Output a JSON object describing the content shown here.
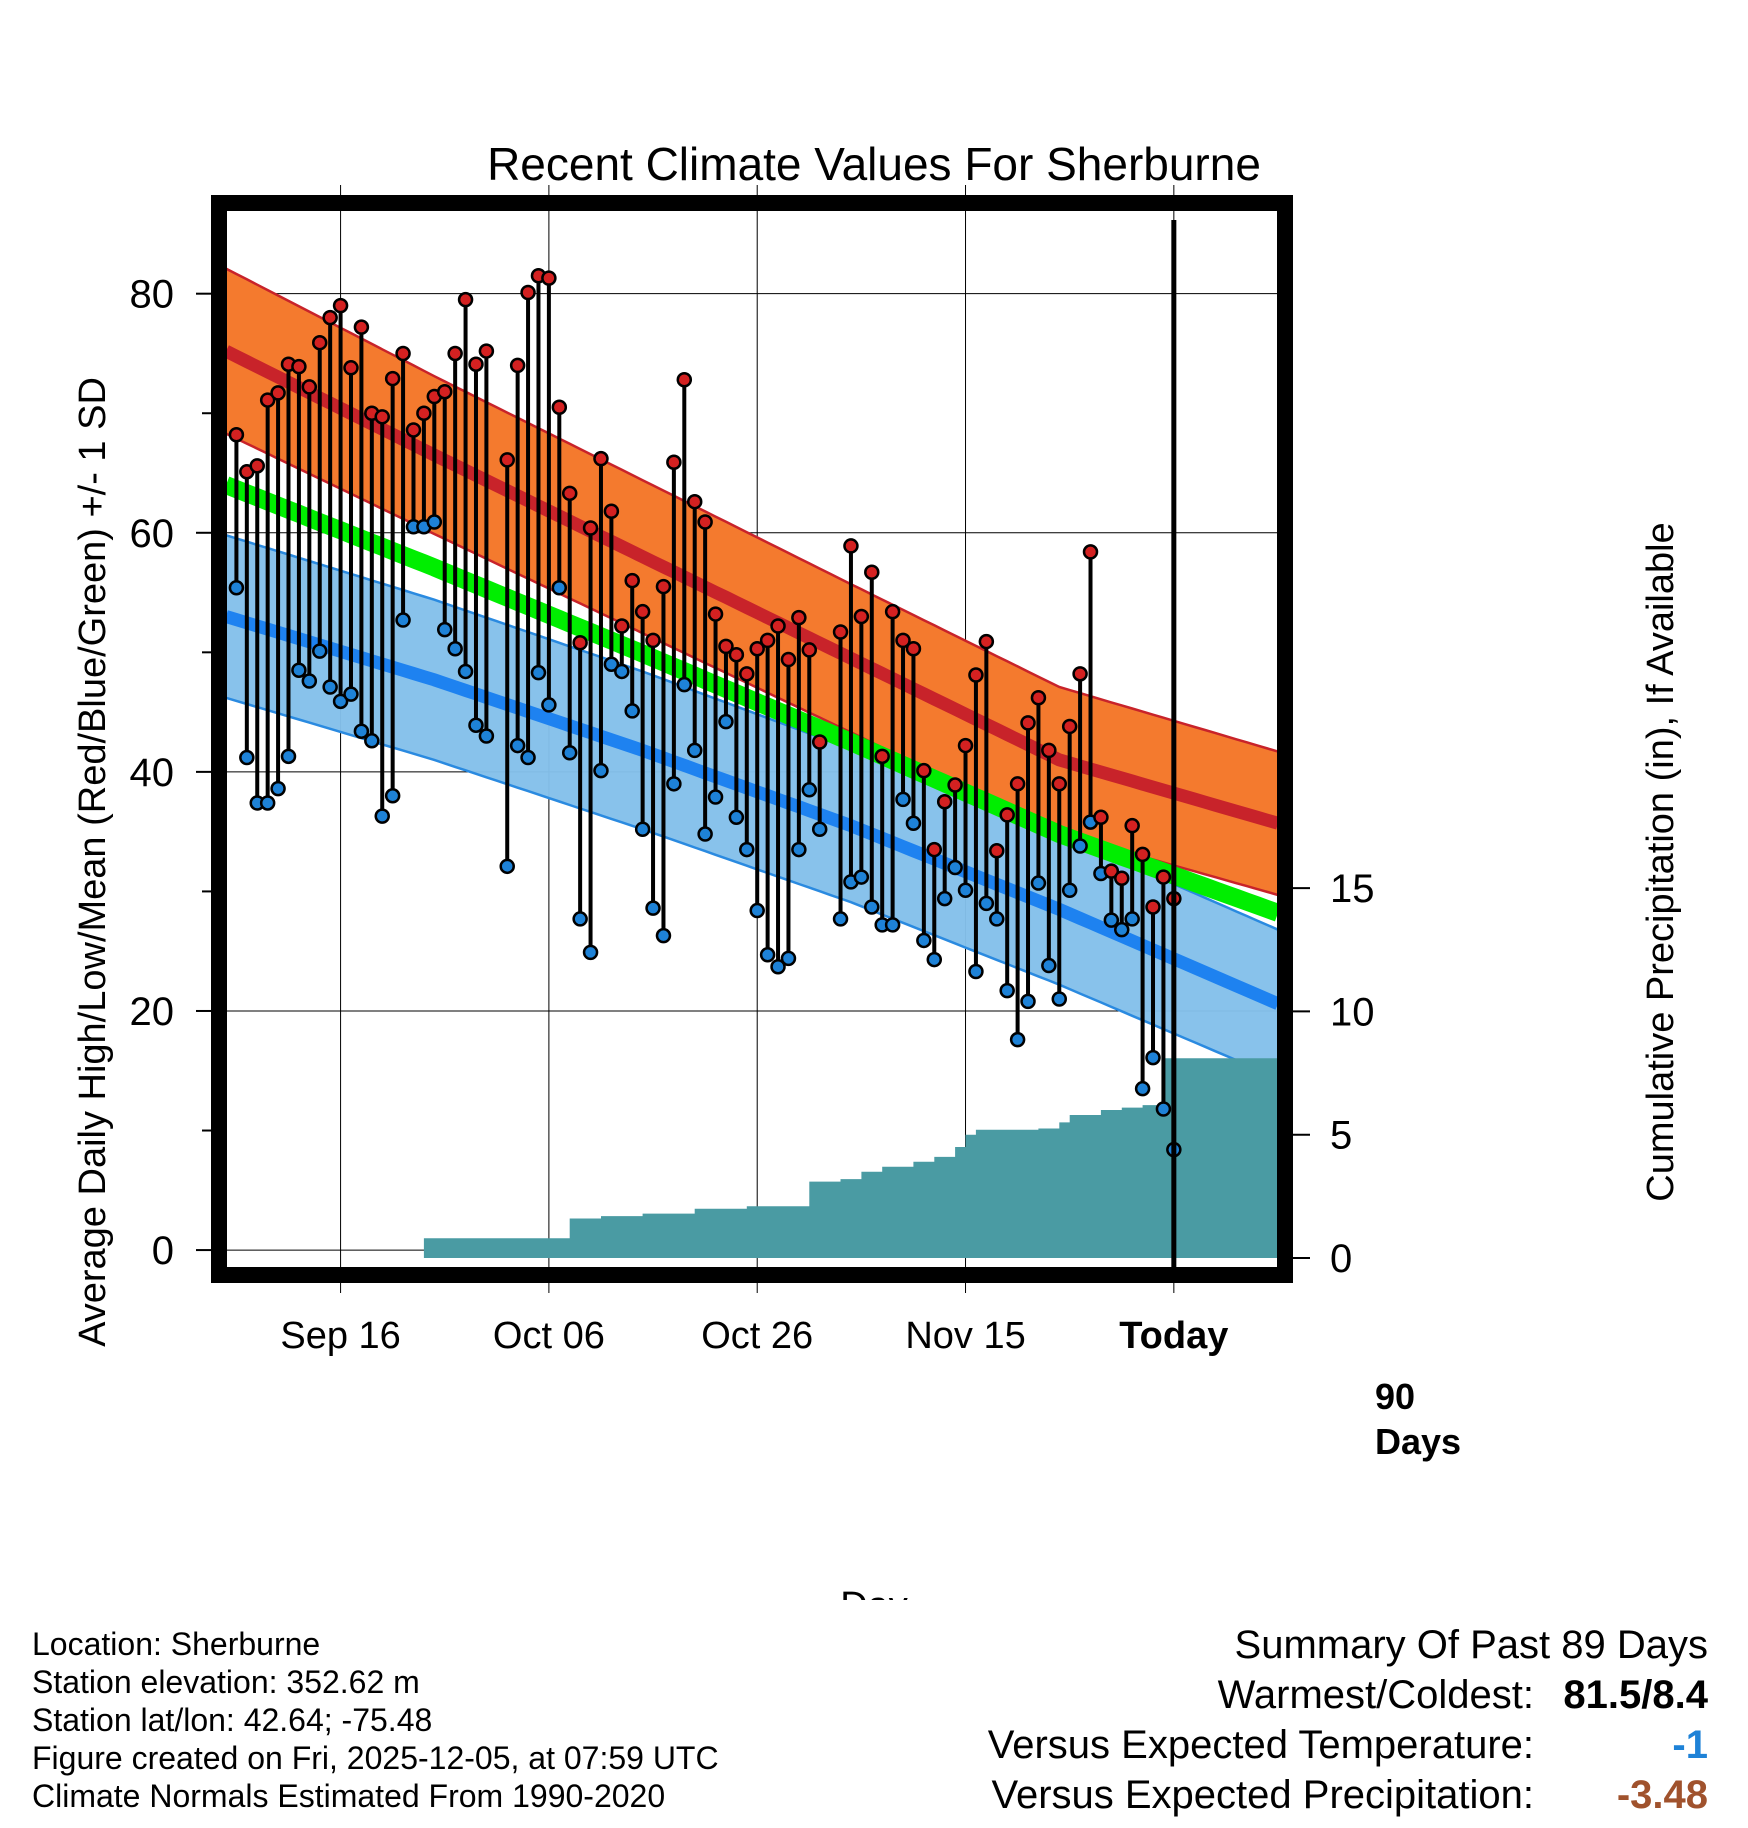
{
  "chart_data": {
    "type": "line",
    "title": "Recent Climate Values For Sherburne",
    "xlabel": "Day",
    "ylabel": "Average Daily High/Low/Mean (Red/Blue/Green) +/- 1 SD",
    "ylabel_right": "Cumulative Precipitation (in), If Available",
    "ylim": [
      -1.5,
      87
    ],
    "ylim_right": [
      0,
      42.5
    ],
    "xlim": [
      0,
      101
    ],
    "yticks": [
      "0",
      "20",
      "40",
      "60",
      "80"
    ],
    "yticks_right": [
      "0",
      "5",
      "10",
      "15"
    ],
    "xticks": [
      {
        "day": 11,
        "label": "Sep 16"
      },
      {
        "day": 31,
        "label": "Oct 06"
      },
      {
        "day": 51,
        "label": "Oct 26"
      },
      {
        "day": 71,
        "label": "Nov 15"
      },
      {
        "day": 91,
        "label": "Today"
      }
    ],
    "today_marker": {
      "day": 91,
      "label_line1": "90",
      "label_line2": "Days"
    },
    "normals": {
      "days": [
        0,
        20,
        40,
        60,
        80,
        101
      ],
      "high_mean": [
        75.2,
        66.5,
        58,
        49.5,
        41,
        35.7
      ],
      "high_sd": [
        6.9,
        6.6,
        6.4,
        6.2,
        6.1,
        6.0
      ],
      "low_mean": [
        53,
        47.7,
        41.8,
        35.5,
        28.5,
        20.6
      ],
      "low_sd": [
        6.8,
        6.7,
        6.6,
        6.4,
        6.3,
        6.2
      ],
      "avg_mean": [
        64,
        57.1,
        49.9,
        42.5,
        34.8,
        28.2
      ]
    },
    "series": [
      {
        "name": "Daily High",
        "color": "#d42121",
        "values": [
          68.2,
          65.1,
          65.6,
          71.1,
          71.7,
          74.1,
          73.9,
          72.2,
          75.9,
          78.0,
          79.0,
          73.8,
          77.2,
          70.0,
          69.7,
          72.9,
          75.0,
          68.6,
          70.0,
          71.4,
          71.8,
          75.0,
          79.5,
          74.1,
          75.2,
          null,
          66.1,
          74.0,
          80.1,
          81.5,
          81.3,
          70.5,
          63.3,
          50.8,
          60.4,
          66.2,
          61.8,
          52.2,
          56.0,
          53.4,
          51.0,
          55.5,
          65.9,
          72.8,
          62.6,
          60.9,
          53.2,
          50.5,
          49.8,
          48.2,
          50.3,
          51.0,
          52.2,
          49.4,
          52.9,
          50.2,
          42.5,
          null,
          51.7,
          58.9,
          53.0,
          56.7,
          41.3,
          53.4,
          51.0,
          50.3,
          40.1,
          33.5,
          37.5,
          38.9,
          42.2,
          48.1,
          50.9,
          33.4,
          36.4,
          39.0,
          44.1,
          46.2,
          41.8,
          39.0,
          43.8,
          48.2,
          58.4,
          36.2,
          31.7,
          31.1,
          35.5,
          33.1,
          28.7,
          31.2,
          29.4
        ]
      },
      {
        "name": "Daily Low",
        "color": "#1e82d7",
        "values": [
          55.4,
          41.2,
          37.4,
          37.4,
          38.6,
          41.3,
          48.5,
          47.6,
          50.1,
          47.1,
          45.9,
          46.5,
          43.4,
          42.6,
          36.3,
          38.0,
          52.7,
          60.5,
          60.5,
          60.9,
          51.9,
          50.3,
          48.4,
          43.9,
          43.0,
          null,
          32.1,
          42.2,
          41.2,
          48.3,
          45.6,
          55.4,
          41.6,
          27.7,
          24.9,
          40.1,
          49.0,
          48.4,
          45.1,
          35.2,
          28.6,
          26.3,
          39.0,
          47.3,
          41.8,
          34.8,
          37.9,
          44.2,
          36.2,
          33.5,
          28.4,
          24.7,
          23.7,
          24.4,
          33.5,
          38.5,
          35.2,
          null,
          27.7,
          30.8,
          31.2,
          28.7,
          27.2,
          27.2,
          37.7,
          35.7,
          25.9,
          24.3,
          29.4,
          32.0,
          30.1,
          23.3,
          29.0,
          27.7,
          21.7,
          17.6,
          20.8,
          30.7,
          23.8,
          21.0,
          30.1,
          33.8,
          35.8,
          31.5,
          27.6,
          26.8,
          27.7,
          13.5,
          16.1,
          11.8,
          8.4
        ]
      },
      {
        "name": "Cumulative Precipitation",
        "color": "#4a9ba3",
        "step": true,
        "days": [
          0,
          18.3,
          19,
          31,
          33,
          36,
          40,
          43,
          45,
          50,
          54.5,
          56,
          59,
          61,
          63,
          66,
          68,
          70,
          71,
          72,
          74,
          78,
          80,
          81,
          82,
          84,
          86,
          88,
          90,
          101
        ],
        "values": [
          0,
          0,
          0.8,
          0.8,
          1.6,
          1.7,
          1.8,
          1.8,
          2.0,
          2.1,
          2.1,
          3.1,
          3.2,
          3.5,
          3.7,
          3.9,
          4.1,
          4.5,
          5.0,
          5.2,
          5.2,
          5.25,
          5.5,
          5.8,
          5.8,
          6.0,
          6.1,
          6.2,
          8.1,
          8.1
        ]
      }
    ]
  },
  "info": {
    "location": "Location: Sherburne",
    "elevation": "Station elevation: 352.62 m",
    "latlon": "Station lat/lon: 42.64; -75.48",
    "created": "Figure created on Fri, 2025-12-05, at 07:59 UTC",
    "normals": "Climate Normals Estimated From 1990-2020"
  },
  "summary": {
    "title": "Summary Of Past 89 Days",
    "warmest_label": "Warmest/Coldest:",
    "warmest_value": "81.5/8.4",
    "temp_label": "Versus Expected Temperature:",
    "temp_value": "-1",
    "temp_color": "#1e82d7",
    "precip_label": "Versus Expected Precipitation:",
    "precip_value": "-3.48",
    "precip_color": "#a0522d"
  }
}
